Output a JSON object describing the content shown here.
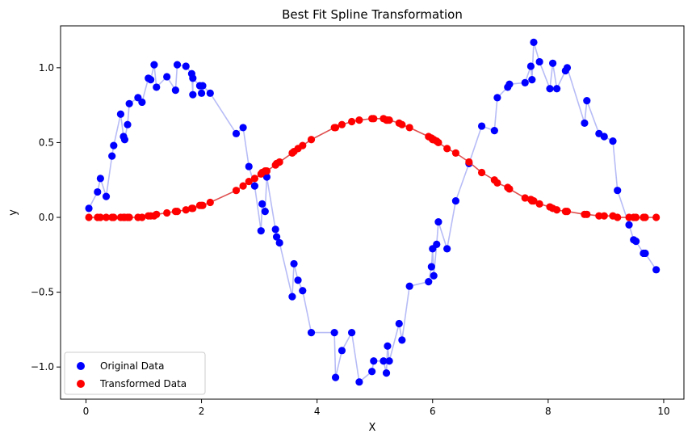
{
  "chart_data": {
    "type": "scatter",
    "title": "Best Fit Spline Transformation",
    "xlabel": "X",
    "ylabel": "y",
    "xlim": [
      -0.44,
      10.35
    ],
    "ylim": [
      -1.215,
      1.28
    ],
    "grid": false,
    "legend_position": "lower-left",
    "x_ticks": [
      0,
      2,
      4,
      6,
      8,
      10
    ],
    "x_tick_labels": [
      "0",
      "2",
      "4",
      "6",
      "8",
      "10"
    ],
    "y_ticks": [
      -1.0,
      -0.5,
      0.0,
      0.5,
      1.0
    ],
    "y_tick_labels": [
      "−1.0",
      "−0.5",
      "0.0",
      "0.5",
      "1.0"
    ],
    "series": [
      {
        "name": "Original Data",
        "color": "#0000ff",
        "line_color": "#aab0f5",
        "points": [
          [
            0.05,
            0.06
          ],
          [
            0.2,
            0.17
          ],
          [
            0.25,
            0.26
          ],
          [
            0.35,
            0.14
          ],
          [
            0.45,
            0.41
          ],
          [
            0.48,
            0.48
          ],
          [
            0.6,
            0.69
          ],
          [
            0.65,
            0.54
          ],
          [
            0.67,
            0.52
          ],
          [
            0.72,
            0.62
          ],
          [
            0.75,
            0.76
          ],
          [
            0.9,
            0.8
          ],
          [
            0.97,
            0.77
          ],
          [
            1.08,
            0.93
          ],
          [
            1.12,
            0.92
          ],
          [
            1.18,
            1.02
          ],
          [
            1.22,
            0.87
          ],
          [
            1.4,
            0.94
          ],
          [
            1.55,
            0.85
          ],
          [
            1.58,
            1.02
          ],
          [
            1.73,
            1.01
          ],
          [
            1.83,
            0.96
          ],
          [
            1.85,
            0.82
          ],
          [
            1.85,
            0.93
          ],
          [
            1.97,
            0.88
          ],
          [
            2.0,
            0.83
          ],
          [
            2.02,
            0.88
          ],
          [
            2.15,
            0.83
          ],
          [
            2.6,
            0.56
          ],
          [
            2.72,
            0.6
          ],
          [
            2.82,
            0.34
          ],
          [
            2.92,
            0.21
          ],
          [
            3.03,
            -0.09
          ],
          [
            3.05,
            0.09
          ],
          [
            3.1,
            0.04
          ],
          [
            3.13,
            0.27
          ],
          [
            3.28,
            -0.08
          ],
          [
            3.3,
            -0.13
          ],
          [
            3.35,
            -0.17
          ],
          [
            3.57,
            -0.53
          ],
          [
            3.6,
            -0.31
          ],
          [
            3.67,
            -0.42
          ],
          [
            3.75,
            -0.49
          ],
          [
            3.9,
            -0.77
          ],
          [
            4.3,
            -0.77
          ],
          [
            4.32,
            -1.07
          ],
          [
            4.43,
            -0.89
          ],
          [
            4.6,
            -0.77
          ],
          [
            4.73,
            -1.1
          ],
          [
            4.95,
            -1.03
          ],
          [
            4.98,
            -0.96
          ],
          [
            5.15,
            -0.96
          ],
          [
            5.2,
            -1.04
          ],
          [
            5.22,
            -0.86
          ],
          [
            5.25,
            -0.96
          ],
          [
            5.42,
            -0.71
          ],
          [
            5.47,
            -0.82
          ],
          [
            5.6,
            -0.46
          ],
          [
            5.93,
            -0.43
          ],
          [
            5.98,
            -0.33
          ],
          [
            6.0,
            -0.21
          ],
          [
            6.02,
            -0.39
          ],
          [
            6.07,
            -0.18
          ],
          [
            6.1,
            -0.03
          ],
          [
            6.25,
            -0.21
          ],
          [
            6.4,
            0.11
          ],
          [
            6.63,
            0.36
          ],
          [
            6.85,
            0.61
          ],
          [
            7.07,
            0.58
          ],
          [
            7.12,
            0.8
          ],
          [
            7.3,
            0.87
          ],
          [
            7.33,
            0.89
          ],
          [
            7.6,
            0.9
          ],
          [
            7.7,
            1.01
          ],
          [
            7.72,
            0.92
          ],
          [
            7.75,
            1.17
          ],
          [
            7.85,
            1.04
          ],
          [
            8.03,
            0.86
          ],
          [
            8.08,
            1.03
          ],
          [
            8.15,
            0.86
          ],
          [
            8.3,
            0.98
          ],
          [
            8.33,
            1.0
          ],
          [
            8.63,
            0.63
          ],
          [
            8.67,
            0.78
          ],
          [
            8.88,
            0.56
          ],
          [
            8.97,
            0.54
          ],
          [
            9.12,
            0.51
          ],
          [
            9.2,
            0.18
          ],
          [
            9.4,
            -0.05
          ],
          [
            9.48,
            -0.15
          ],
          [
            9.52,
            -0.16
          ],
          [
            9.65,
            -0.24
          ],
          [
            9.68,
            -0.24
          ],
          [
            9.87,
            -0.35
          ]
        ]
      },
      {
        "name": "Transformed Data",
        "color": "#ff0000",
        "line_color": "#e05050",
        "points": [
          [
            0.05,
            0.0
          ],
          [
            0.2,
            0.0
          ],
          [
            0.25,
            0.0
          ],
          [
            0.35,
            0.0
          ],
          [
            0.45,
            0.0
          ],
          [
            0.48,
            0.0
          ],
          [
            0.6,
            0.0
          ],
          [
            0.65,
            0.0
          ],
          [
            0.67,
            0.0
          ],
          [
            0.72,
            0.0
          ],
          [
            0.75,
            0.0
          ],
          [
            0.9,
            0.0
          ],
          [
            0.97,
            0.0
          ],
          [
            1.08,
            0.01
          ],
          [
            1.12,
            0.01
          ],
          [
            1.18,
            0.01
          ],
          [
            1.22,
            0.02
          ],
          [
            1.4,
            0.03
          ],
          [
            1.55,
            0.04
          ],
          [
            1.58,
            0.04
          ],
          [
            1.73,
            0.05
          ],
          [
            1.83,
            0.06
          ],
          [
            1.85,
            0.06
          ],
          [
            1.97,
            0.08
          ],
          [
            2.0,
            0.08
          ],
          [
            2.02,
            0.08
          ],
          [
            2.15,
            0.1
          ],
          [
            2.6,
            0.18
          ],
          [
            2.72,
            0.21
          ],
          [
            2.82,
            0.24
          ],
          [
            2.92,
            0.26
          ],
          [
            3.03,
            0.29
          ],
          [
            3.05,
            0.3
          ],
          [
            3.1,
            0.31
          ],
          [
            3.13,
            0.31
          ],
          [
            3.28,
            0.35
          ],
          [
            3.3,
            0.36
          ],
          [
            3.35,
            0.37
          ],
          [
            3.57,
            0.43
          ],
          [
            3.6,
            0.44
          ],
          [
            3.67,
            0.46
          ],
          [
            3.75,
            0.48
          ],
          [
            3.9,
            0.52
          ],
          [
            4.3,
            0.6
          ],
          [
            4.32,
            0.6
          ],
          [
            4.43,
            0.62
          ],
          [
            4.6,
            0.64
          ],
          [
            4.73,
            0.65
          ],
          [
            4.95,
            0.66
          ],
          [
            4.98,
            0.66
          ],
          [
            5.15,
            0.66
          ],
          [
            5.2,
            0.65
          ],
          [
            5.22,
            0.65
          ],
          [
            5.25,
            0.65
          ],
          [
            5.42,
            0.63
          ],
          [
            5.47,
            0.62
          ],
          [
            5.6,
            0.6
          ],
          [
            5.93,
            0.54
          ],
          [
            5.98,
            0.53
          ],
          [
            6.0,
            0.52
          ],
          [
            6.02,
            0.52
          ],
          [
            6.07,
            0.51
          ],
          [
            6.1,
            0.5
          ],
          [
            6.25,
            0.46
          ],
          [
            6.4,
            0.43
          ],
          [
            6.63,
            0.37
          ],
          [
            6.85,
            0.3
          ],
          [
            7.07,
            0.25
          ],
          [
            7.12,
            0.23
          ],
          [
            7.3,
            0.2
          ],
          [
            7.33,
            0.19
          ],
          [
            7.6,
            0.13
          ],
          [
            7.7,
            0.12
          ],
          [
            7.72,
            0.11
          ],
          [
            7.75,
            0.11
          ],
          [
            7.85,
            0.09
          ],
          [
            8.03,
            0.07
          ],
          [
            8.08,
            0.06
          ],
          [
            8.15,
            0.05
          ],
          [
            8.3,
            0.04
          ],
          [
            8.33,
            0.04
          ],
          [
            8.63,
            0.02
          ],
          [
            8.67,
            0.02
          ],
          [
            8.88,
            0.01
          ],
          [
            8.97,
            0.01
          ],
          [
            9.12,
            0.01
          ],
          [
            9.2,
            0.0
          ],
          [
            9.4,
            0.0
          ],
          [
            9.48,
            0.0
          ],
          [
            9.52,
            0.0
          ],
          [
            9.65,
            0.0
          ],
          [
            9.68,
            0.0
          ],
          [
            9.87,
            0.0
          ]
        ]
      }
    ]
  }
}
